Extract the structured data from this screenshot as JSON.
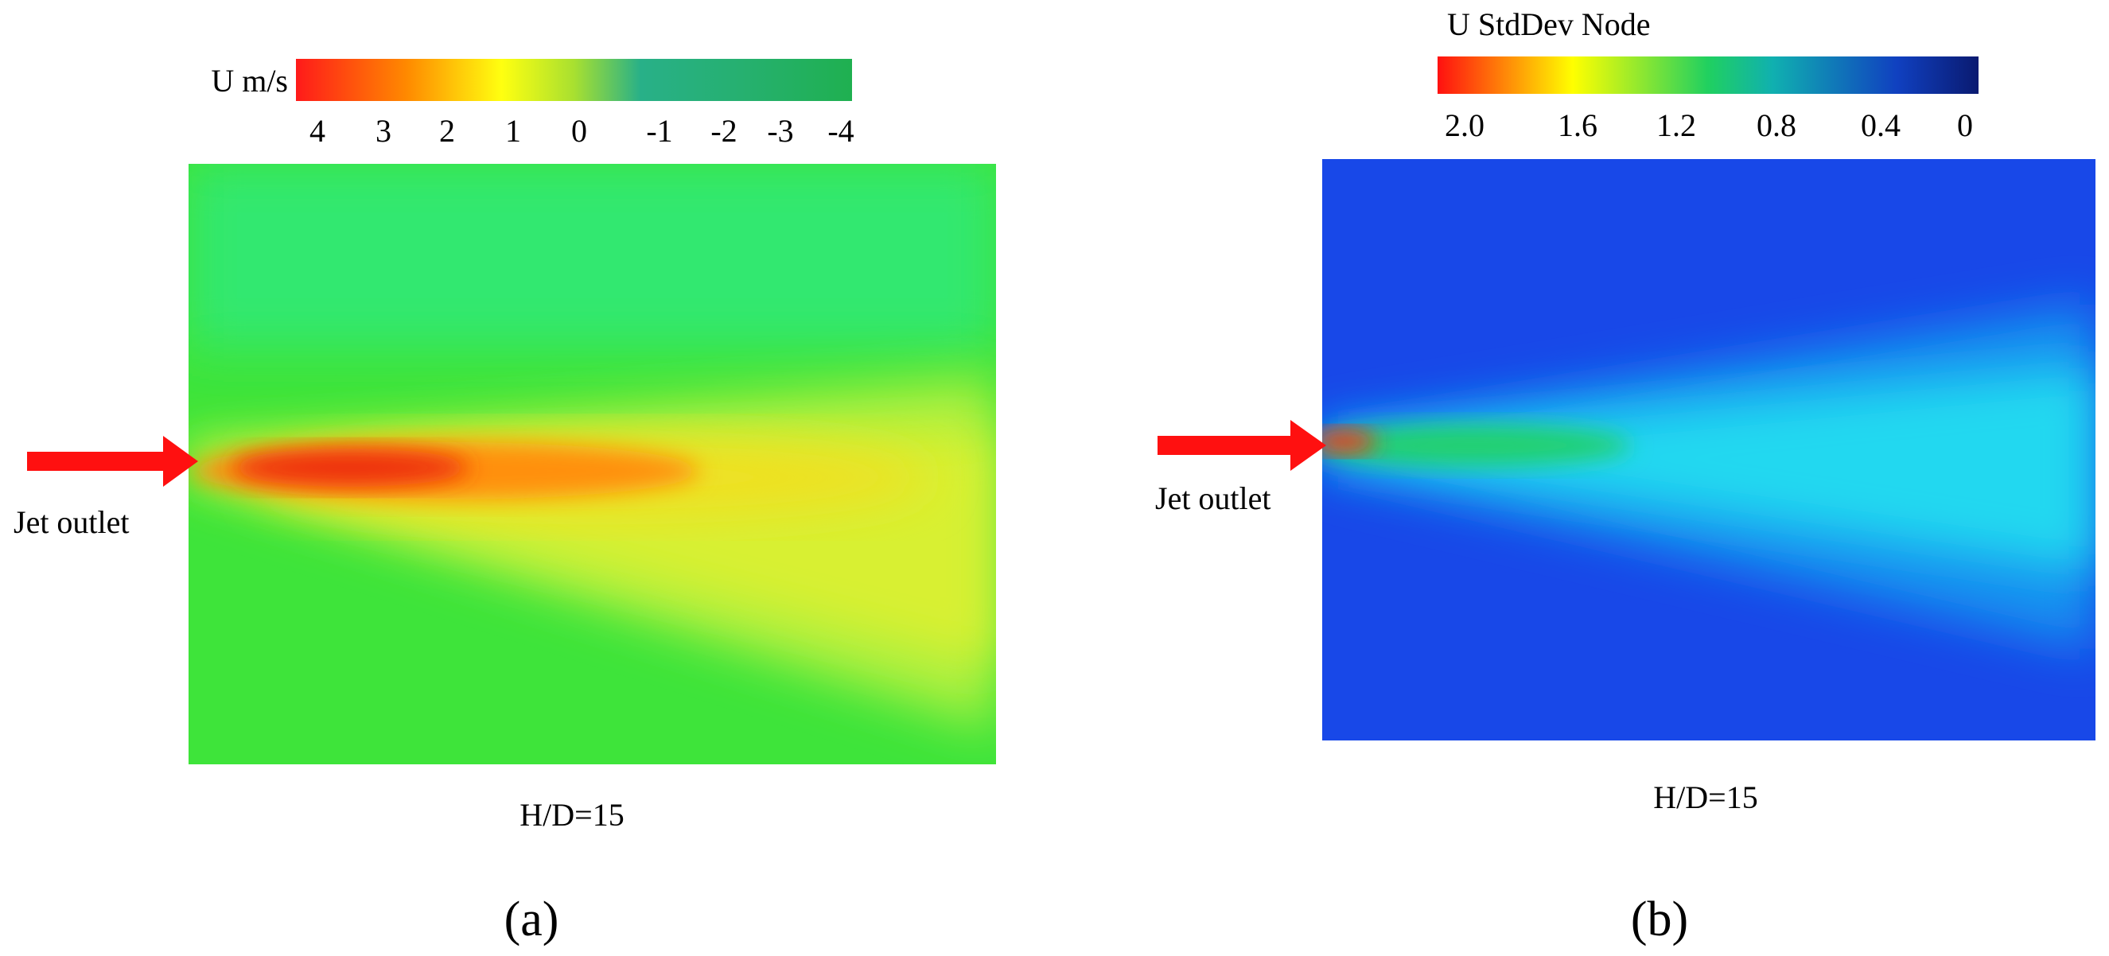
{
  "panels": [
    {
      "colorbar": {
        "title": "U m/s",
        "ticks": [
          "4",
          "3",
          "2",
          "1",
          "0",
          "-1",
          "-2",
          "-3",
          "-4"
        ]
      },
      "inlet_label": "Jet outlet",
      "caption": "H/D=15",
      "label": "(a)"
    },
    {
      "colorbar": {
        "title": "U StdDev Node",
        "ticks": [
          "2.0",
          "1.6",
          "1.2",
          "0.8",
          "0.4",
          "0"
        ]
      },
      "inlet_label": "Jet outlet",
      "caption": "H/D=15",
      "label": "(b)"
    }
  ]
}
